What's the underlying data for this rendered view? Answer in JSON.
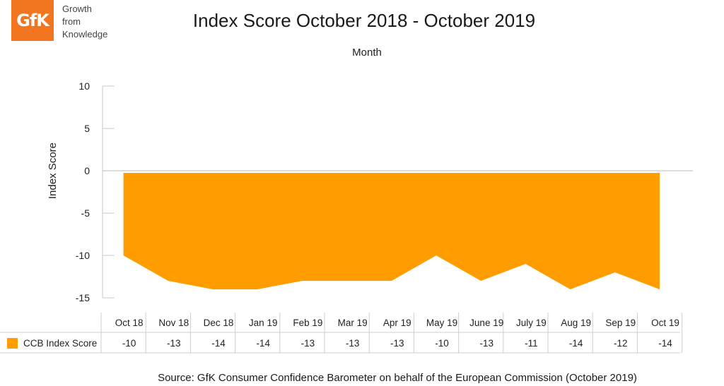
{
  "logo": {
    "mark": "GfK",
    "tagline": [
      "Growth",
      "from",
      "Knowledge"
    ]
  },
  "chart_data": {
    "type": "area",
    "title": "Index Score October 2018 - October 2019",
    "top_label": "Month",
    "ylabel": "Index Score",
    "ylim": [
      -15,
      10
    ],
    "yticks": [
      10,
      5,
      0,
      -5,
      -10,
      -15
    ],
    "categories": [
      "Oct 18",
      "Nov 18",
      "Dec 18",
      "Jan 19",
      "Feb 19",
      "Mar 19",
      "Apr 19",
      "May 19",
      "June 19",
      "July 19",
      "Aug 19",
      "Sep 19",
      "Oct 19"
    ],
    "series": [
      {
        "name": "CCB Index Score",
        "color": "#ff9c00",
        "values": [
          -10,
          -13,
          -14,
          -14,
          -13,
          -13,
          -13,
          -10,
          -13,
          -11,
          -14,
          -12,
          -14
        ]
      }
    ],
    "data_table": true,
    "legend": "data-table-row"
  },
  "source": "Source: GfK Consumer Confidence Barometer on behalf of the European Commission (October 2019)"
}
